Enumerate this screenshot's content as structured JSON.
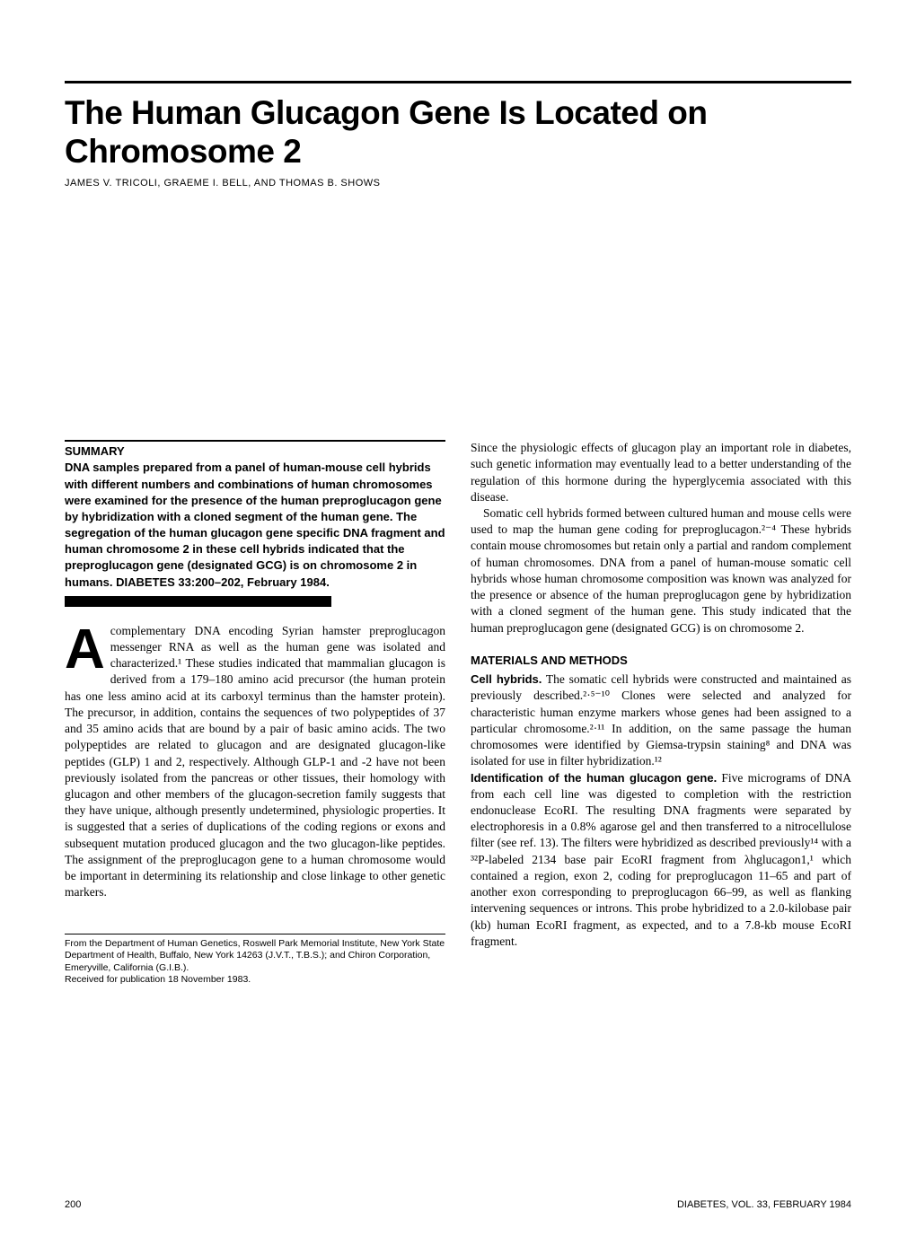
{
  "title": "The Human Glucagon Gene Is Located on Chromosome 2",
  "authors": "JAMES V. TRICOLI, GRAEME I. BELL, AND THOMAS B. SHOWS",
  "summary": {
    "label": "SUMMARY",
    "body": "DNA samples prepared from a panel of human-mouse cell hybrids with different numbers and combinations of human chromosomes were examined for the presence of the human preproglucagon gene by hybridization with a cloned segment of the human gene. The segregation of the human glucagon gene specific DNA fragment and human chromosome 2 in these cell hybrids indicated that the preproglucagon gene (designated GCG) is on chromosome 2 in humans. DIABETES 33:200–202, February 1984."
  },
  "dropcap": "A",
  "intro_para": "complementary DNA encoding Syrian hamster preproglucagon messenger RNA as well as the human gene was isolated and characterized.¹ These studies indicated that mammalian glucagon is derived from a 179–180 amino acid precursor (the human protein has one less amino acid at its carboxyl terminus than the hamster protein). The precursor, in addition, contains the sequences of two polypeptides of 37 and 35 amino acids that are bound by a pair of basic amino acids. The two polypeptides are related to glucagon and are designated glucagon-like peptides (GLP) 1 and 2, respectively. Although GLP-1 and -2 have not been previously isolated from the pancreas or other tissues, their homology with glucagon and other members of the glucagon-secretion family suggests that they have unique, although presently undetermined, physiologic properties. It is suggested that a series of duplications of the coding regions or exons and subsequent mutation produced glucagon and the two glucagon-like peptides. The assignment of the preproglucagon gene to a human chromosome would be important in determining its relationship and close linkage to other genetic markers.",
  "col2_para1": "Since the physiologic effects of glucagon play an important role in diabetes, such genetic information may eventually lead to a better understanding of the regulation of this hormone during the hyperglycemia associated with this disease.",
  "col2_para2": "Somatic cell hybrids formed between cultured human and mouse cells were used to map the human gene coding for preproglucagon.²⁻⁴ These hybrids contain mouse chromosomes but retain only a partial and random complement of human chromosomes. DNA from a panel of human-mouse somatic cell hybrids whose human chromosome composition was known was analyzed for the presence or absence of the human preproglucagon gene by hybridization with a cloned segment of the human gene. This study indicated that the human preproglucagon gene (designated GCG) is on chromosome 2.",
  "methods": {
    "heading": "MATERIALS AND METHODS",
    "cell_hybrids_label": "Cell hybrids.",
    "cell_hybrids_body": " The somatic cell hybrids were constructed and maintained as previously described.²·⁵⁻¹⁰ Clones were selected and analyzed for characteristic human enzyme markers whose genes had been assigned to a particular chromosome.²·¹¹ In addition, on the same passage the human chromosomes were identified by Giemsa-trypsin staining⁸ and DNA was isolated for use in filter hybridization.¹²",
    "identification_label": "Identification of the human glucagon gene.",
    "identification_body": " Five micrograms of DNA from each cell line was digested to completion with the restriction endonuclease EcoRI. The resulting DNA fragments were separated by electrophoresis in a 0.8% agarose gel and then transferred to a nitrocellulose filter (see ref. 13). The filters were hybridized as described previously¹⁴ with a ³²P-labeled 2134 base pair EcoRI fragment from λhglucagon1,¹ which contained a region, exon 2, coding for preproglucagon 11–65 and part of another exon corresponding to preproglucagon 66–99, as well as flanking intervening sequences or introns. This probe hybridized to a 2.0-kilobase pair (kb) human EcoRI fragment, as expected, and to a 7.8-kb mouse EcoRI fragment."
  },
  "affiliation": {
    "line1": "From the Department of Human Genetics, Roswell Park Memorial Institute, New York State Department of Health, Buffalo, New York 14263 (J.V.T., T.B.S.); and Chiron Corporation, Emeryville, California (G.I.B.).",
    "line2": "Received for publication 18 November 1983."
  },
  "footer": {
    "page": "200",
    "journal": "DIABETES, VOL. 33, FEBRUARY 1984"
  },
  "colors": {
    "text": "#000000",
    "background": "#ffffff"
  }
}
